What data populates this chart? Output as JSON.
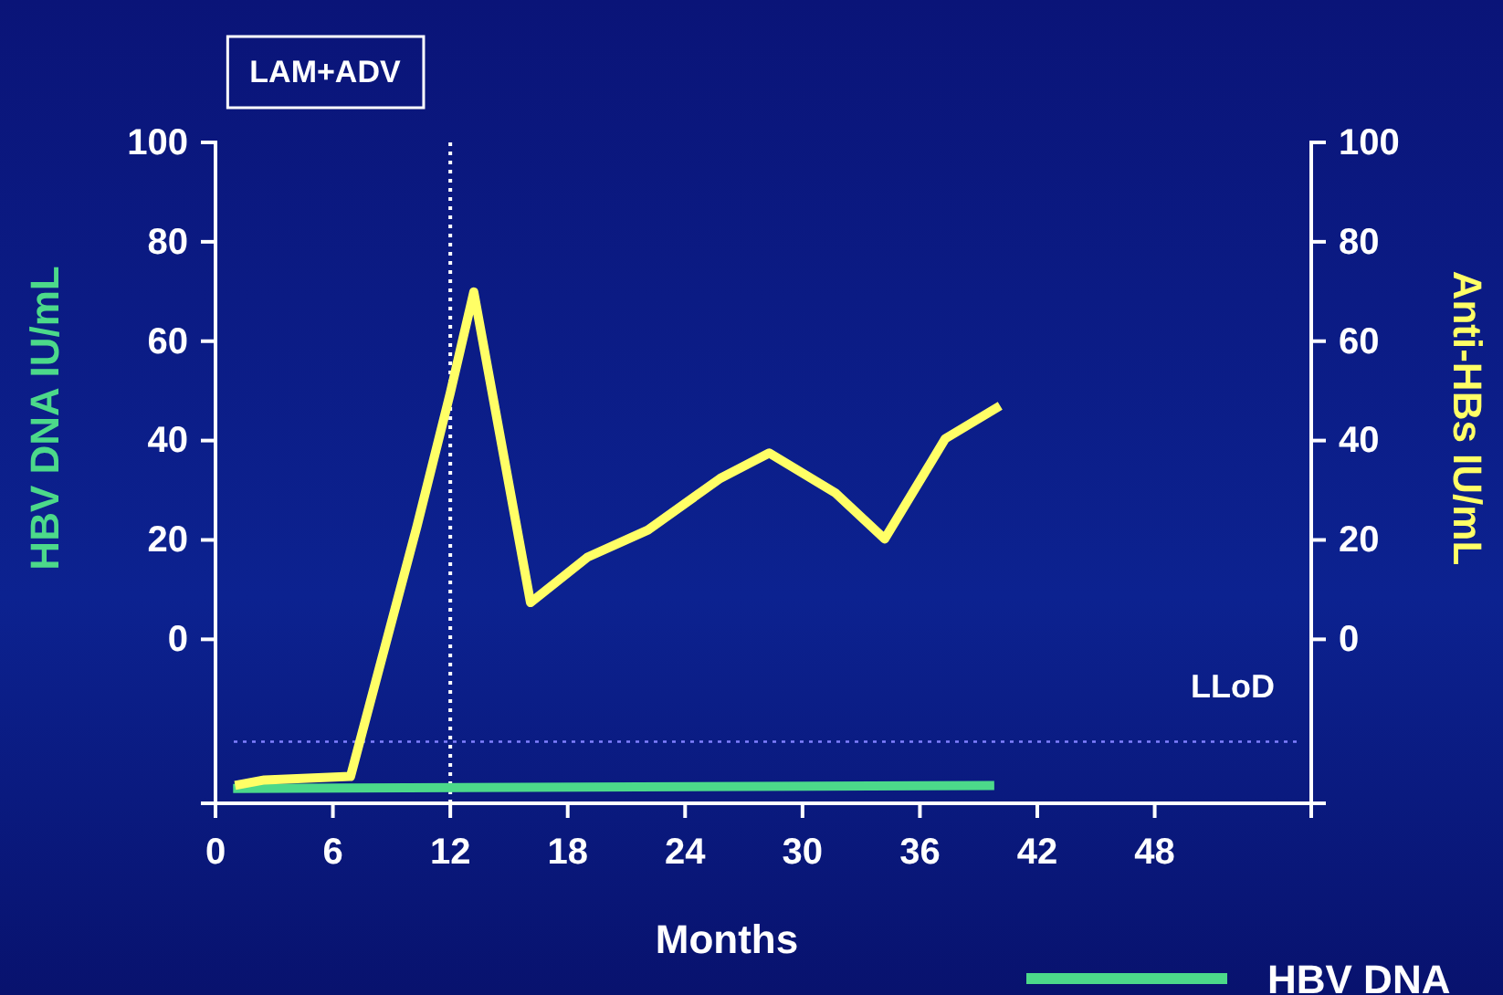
{
  "chart_data": {
    "type": "line",
    "xlabel": "Months",
    "ylabel": "HBV DNA IU/mL",
    "y2label": "Anti-HBs IU/mL",
    "xlim": [
      0,
      56
    ],
    "xticks": [
      0,
      6,
      12,
      18,
      24,
      30,
      36,
      42,
      48
    ],
    "ylim": [
      -33,
      100
    ],
    "yticks": [
      0,
      20,
      40,
      60,
      80,
      100
    ],
    "y2lim": [
      -33,
      100
    ],
    "y2ticks": [
      0,
      20,
      40,
      60,
      80,
      100
    ],
    "grid": false,
    "legend": "bottom right",
    "marker": "none",
    "line_style": "solid",
    "series": [
      {
        "name": "HBV DNA",
        "color": "#4cd98a",
        "axis": "y",
        "x": [
          0.9,
          39.8
        ],
        "values": [
          -30,
          -29.4
        ]
      },
      {
        "color": "#ffff66",
        "axis": "y2",
        "x": [
          1.0,
          2.5,
          6.9,
          10.3,
          12,
          13.2,
          16.1,
          19,
          22.1,
          25.8,
          28.3,
          31.7,
          34.2,
          37.3,
          40.1
        ],
        "values": [
          -29.4,
          -28.3,
          -27.6,
          22.8,
          49.6,
          69.9,
          7.4,
          16.5,
          22,
          32.4,
          37.5,
          29.4,
          20.2,
          40.4,
          47
        ]
      }
    ],
    "ref_lines": [
      {
        "axis": "x",
        "value": 12,
        "color": "#ffffff",
        "line_style": "dotted"
      },
      {
        "axis": "y",
        "value": -20.6,
        "label": "LLoD",
        "color": "#8080ff",
        "line_style": "dotted"
      }
    ],
    "annotations": [
      "LAM+ADV"
    ]
  }
}
